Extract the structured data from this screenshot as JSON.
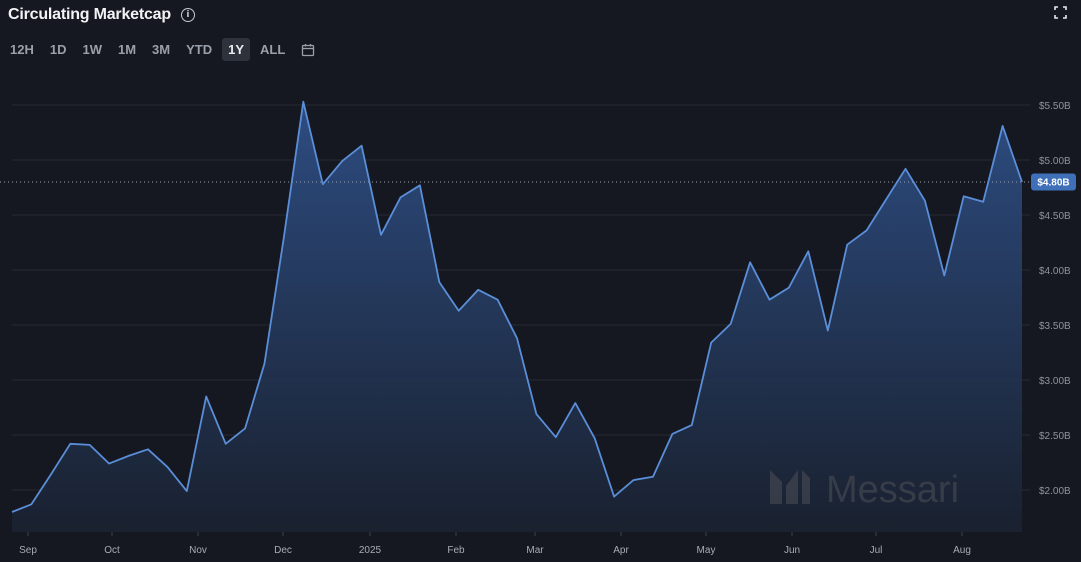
{
  "header": {
    "title": "Circulating Marketcap"
  },
  "ranges": [
    "12H",
    "1D",
    "1W",
    "1M",
    "3M",
    "YTD",
    "1Y",
    "ALL"
  ],
  "active_range": "1Y",
  "watermark": "Messari",
  "chart_data": {
    "type": "area",
    "title": "Circulating Marketcap",
    "y_unit": "USD billions",
    "ylim": [
      1.7,
      5.7
    ],
    "y_ticks": [
      "$2.00B",
      "$2.50B",
      "$3.00B",
      "$3.50B",
      "$4.00B",
      "$4.50B",
      "$5.00B",
      "$5.50B"
    ],
    "x_ticks": [
      "Sep",
      "Oct",
      "Nov",
      "Dec",
      "2025",
      "Feb",
      "Mar",
      "Apr",
      "May",
      "Jun",
      "Jul",
      "Aug"
    ],
    "current_value": 4.8,
    "current_label": "$4.80B",
    "grid": true,
    "series": [
      {
        "values": [
          1.8,
          1.87,
          2.14,
          2.42,
          2.41,
          2.24,
          2.31,
          2.37,
          2.21,
          1.99,
          2.85,
          2.42,
          2.56,
          3.15,
          4.3,
          5.53,
          4.78,
          4.99,
          5.13,
          4.32,
          4.66,
          4.77,
          3.89,
          3.63,
          3.82,
          3.73,
          3.38,
          2.69,
          2.48,
          2.79,
          2.47,
          1.94,
          2.09,
          2.12,
          2.51,
          2.59,
          3.34,
          3.51,
          4.07,
          3.73,
          3.84,
          4.17,
          3.45,
          4.23,
          4.36,
          4.64,
          4.92,
          4.63,
          3.95,
          4.67,
          4.62,
          5.31,
          4.8
        ]
      }
    ]
  }
}
